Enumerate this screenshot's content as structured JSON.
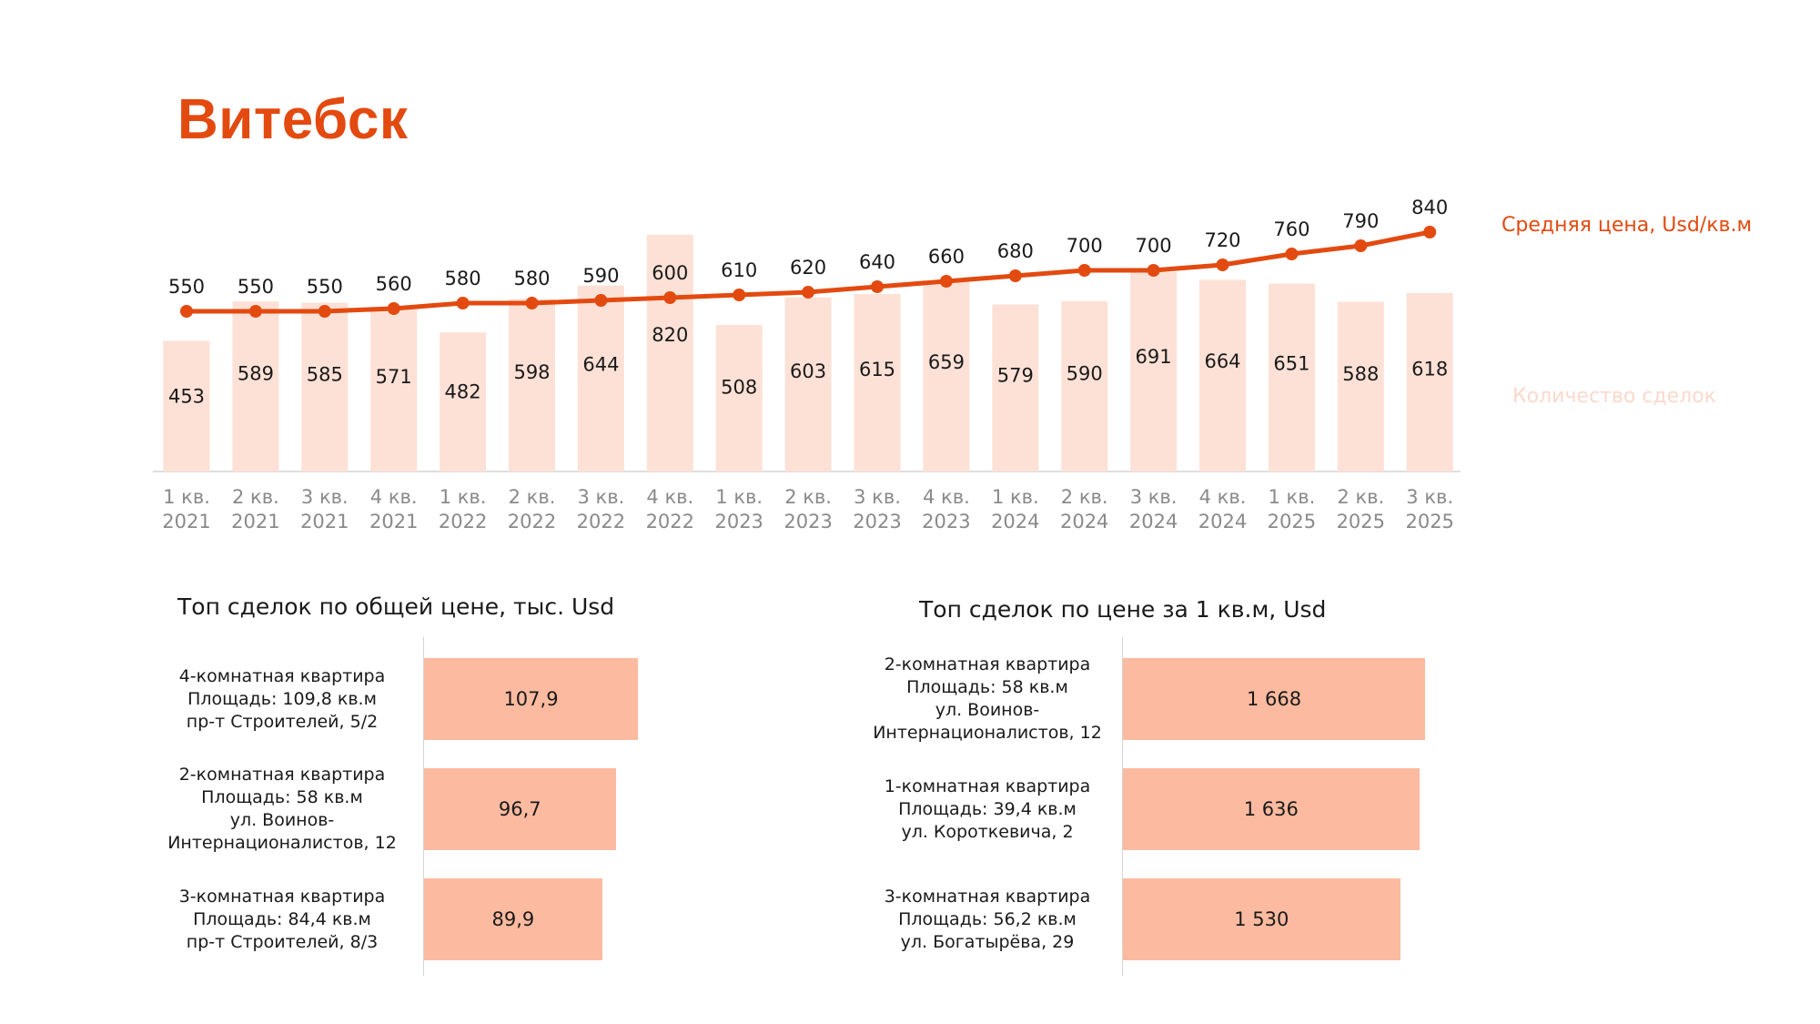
{
  "title": "Витебск",
  "colors": {
    "accent": "#e34a10",
    "bars": "#fde1d6",
    "hbars": "#fcbba0",
    "axis_text": "#8a8a8a",
    "legend_count": "#fbd9cc"
  },
  "chart_data": [
    {
      "type": "bar+line",
      "title": "",
      "categories": [
        [
          "1 кв.",
          "2021"
        ],
        [
          "2 кв.",
          "2021"
        ],
        [
          "3 кв.",
          "2021"
        ],
        [
          "4 кв.",
          "2021"
        ],
        [
          "1 кв.",
          "2022"
        ],
        [
          "2 кв.",
          "2022"
        ],
        [
          "3 кв.",
          "2022"
        ],
        [
          "4 кв.",
          "2022"
        ],
        [
          "1 кв.",
          "2023"
        ],
        [
          "2 кв.",
          "2023"
        ],
        [
          "3 кв.",
          "2023"
        ],
        [
          "4 кв.",
          "2023"
        ],
        [
          "1 кв.",
          "2024"
        ],
        [
          "2 кв.",
          "2024"
        ],
        [
          "3 кв.",
          "2024"
        ],
        [
          "4 кв.",
          "2024"
        ],
        [
          "1 кв.",
          "2025"
        ],
        [
          "2 кв.",
          "2025"
        ],
        [
          "3 кв.",
          "2025"
        ]
      ],
      "series": [
        {
          "name": "Количество сделок",
          "type": "bar",
          "values": [
            453,
            589,
            585,
            571,
            482,
            598,
            644,
            820,
            508,
            603,
            615,
            659,
            579,
            590,
            691,
            664,
            651,
            588,
            618
          ]
        },
        {
          "name": "Средняя цена, Usd/кв.м",
          "type": "line",
          "values": [
            550,
            550,
            550,
            560,
            580,
            580,
            590,
            600,
            610,
            620,
            640,
            660,
            680,
            700,
            700,
            720,
            760,
            790,
            840
          ]
        }
      ],
      "legend": [
        "Средняя цена, Usd/кв.м",
        "Количество сделок"
      ],
      "legend_position": "right"
    },
    {
      "type": "bar",
      "orientation": "horizontal",
      "title": "Топ сделок по общей цене, тыс. Usd",
      "categories": [
        [
          "4-комнатная квартира",
          "Площадь: 109,8 кв.м",
          "пр-т Строителей, 5/2"
        ],
        [
          "2-комнатная квартира",
          "Площадь: 58 кв.м",
          "ул. Воинов-",
          "Интернационалистов, 12"
        ],
        [
          "3-комнатная квартира",
          "Площадь: 84,4 кв.м",
          "пр-т Строителей, 8/3"
        ]
      ],
      "values": [
        107.9,
        96.7,
        89.9
      ],
      "value_labels": [
        "107,9",
        "96,7",
        "89,9"
      ]
    },
    {
      "type": "bar",
      "orientation": "horizontal",
      "title": "Топ сделок по цене за 1 кв.м, Usd",
      "categories": [
        [
          "2-комнатная квартира",
          "Площадь: 58 кв.м",
          "ул. Воинов-",
          "Интернационалистов, 12"
        ],
        [
          "1-комнатная квартира",
          "Площадь: 39,4 кв.м",
          "ул. Короткевича, 2"
        ],
        [
          "3-комнатная квартира",
          "Площадь: 56,2 кв.м",
          "ул. Богатырёва, 29"
        ]
      ],
      "values": [
        1668,
        1636,
        1530
      ],
      "value_labels": [
        "1 668",
        "1 636",
        "1 530"
      ]
    }
  ]
}
